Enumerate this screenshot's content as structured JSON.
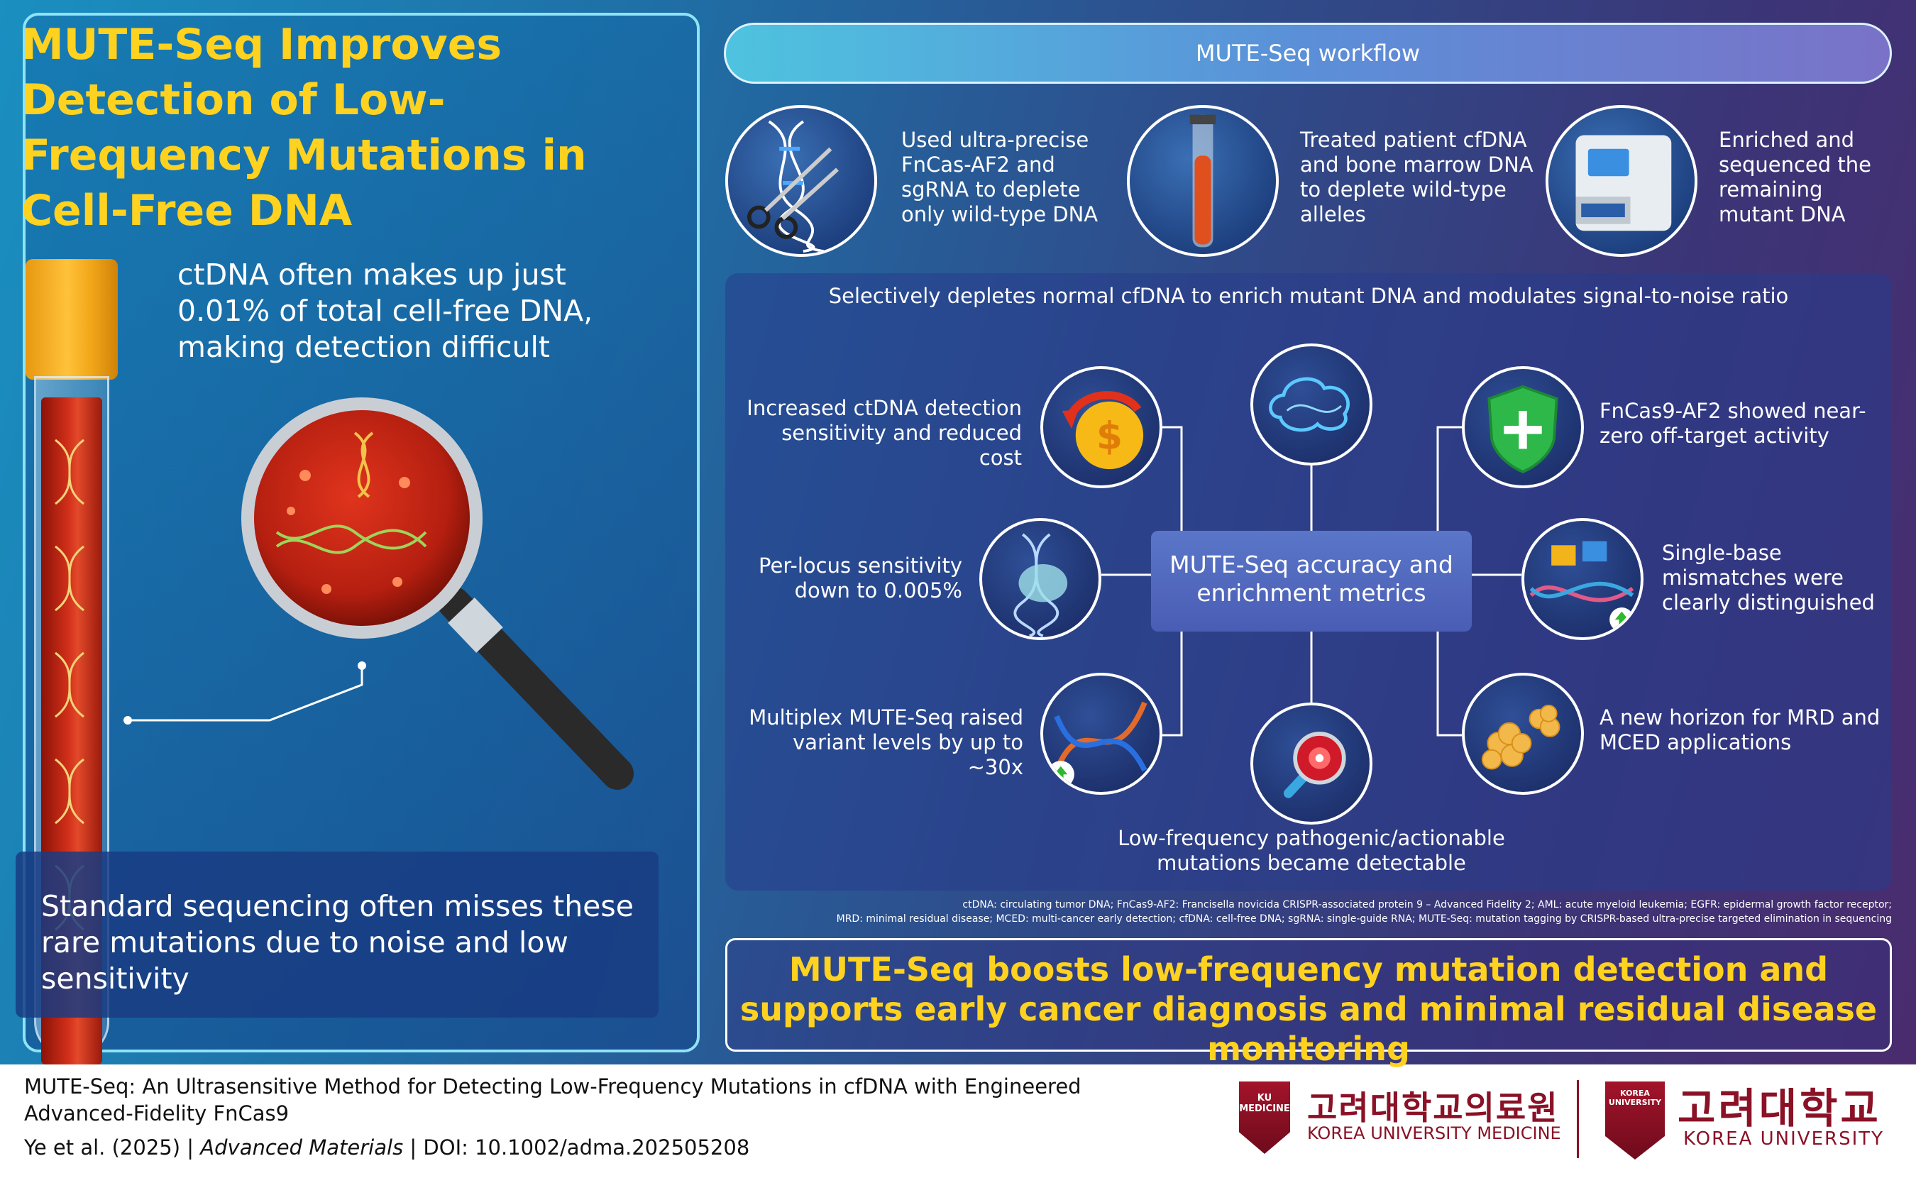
{
  "left": {
    "title": "MUTE-Seq Improves Detection of Low-Frequency Mutations in Cell-Free DNA",
    "ctdna_note": "ctDNA often makes up just 0.01% of total cell-free DNA, making detection difficult",
    "bottom_note": "Standard sequencing often misses these rare mutations due to noise and low sensitivity"
  },
  "workflow": {
    "title": "MUTE-Seq workflow",
    "steps": [
      {
        "text": "Used ultra-precise FnCas-AF2 and sgRNA to deplete only wild-type DNA",
        "icon": "dna-scissors-icon"
      },
      {
        "text": "Treated patient cfDNA and bone marrow DNA to deplete wild-type alleles",
        "icon": "test-tube-icon"
      },
      {
        "text": "Enriched and sequenced the remaining mutant DNA",
        "icon": "sequencer-icon"
      }
    ]
  },
  "metrics": {
    "header": "Selectively depletes normal cfDNA to enrich mutant DNA and modulates signal-to-noise ratio",
    "center": "MUTE-Seq accuracy and enrichment metrics",
    "items": [
      {
        "id": "cost",
        "text": "Increased ctDNA detection sensitivity and reduced cost",
        "icon": "coin-arrow-icon"
      },
      {
        "id": "locus",
        "text": "Per-locus sensitivity down to 0.005%",
        "icon": "dna-capsule-icon"
      },
      {
        "id": "multiplex",
        "text": "Multiplex MUTE-Seq raised variant levels by up to ~30x",
        "icon": "dna-helix-up-icon"
      },
      {
        "id": "offtarget",
        "text": "FnCas9-AF2 showed near-zero off-target activity",
        "icon": "shield-plus-icon"
      },
      {
        "id": "mismatch",
        "text": "Single-base mismatches were clearly distinguished",
        "icon": "puzzle-dna-icon"
      },
      {
        "id": "mrd",
        "text": "A new horizon for MRD and MCED applications",
        "icon": "cell-cluster-icon"
      },
      {
        "id": "pathogenic",
        "text": "Low-frequency pathogenic/actionable mutations became detectable",
        "icon": "magnifier-target-icon"
      }
    ],
    "top_icon": "dna-cloud-icon"
  },
  "abbreviations": {
    "line1": "ctDNA: circulating tumor DNA; FnCas9-AF2: Francisella novicida CRISPR-associated protein 9 – Advanced Fidelity 2; AML: acute myeloid leukemia; EGFR: epidermal growth factor receptor;",
    "line2": "MRD: minimal residual disease; MCED: multi-cancer early detection; cfDNA: cell-free DNA; sgRNA: single-guide RNA; MUTE-Seq: mutation tagging by CRISPR-based ultra-precise targeted elimination in sequencing"
  },
  "conclusion": "MUTE-Seq boosts low-frequency mutation detection and supports early cancer diagnosis and minimal residual disease monitoring",
  "footer": {
    "title": "MUTE-Seq: An Ultrasensitive Method for Detecting Low-Frequency Mutations in cfDNA with Engineered Advanced-Fidelity FnCas9",
    "authors": "Ye et al. (2025)",
    "journal": "Advanced Materials",
    "doi": "DOI: 10.1002/adma.202505208",
    "sep": "|"
  },
  "logos": {
    "ku_medicine_shield": "KU MEDICINE",
    "ku_medicine_korean": "고려대학교의료원",
    "ku_medicine_english": "KOREA UNIVERSITY MEDICINE",
    "ku_shield": "KOREA UNIVERSITY",
    "ku_korean": "고려대학교",
    "ku_english": "KOREA UNIVERSITY",
    "brand_color": "#8a1126"
  },
  "colors": {
    "accent_yellow": "#ffd21f",
    "panel_border": "#8fe3f5"
  }
}
